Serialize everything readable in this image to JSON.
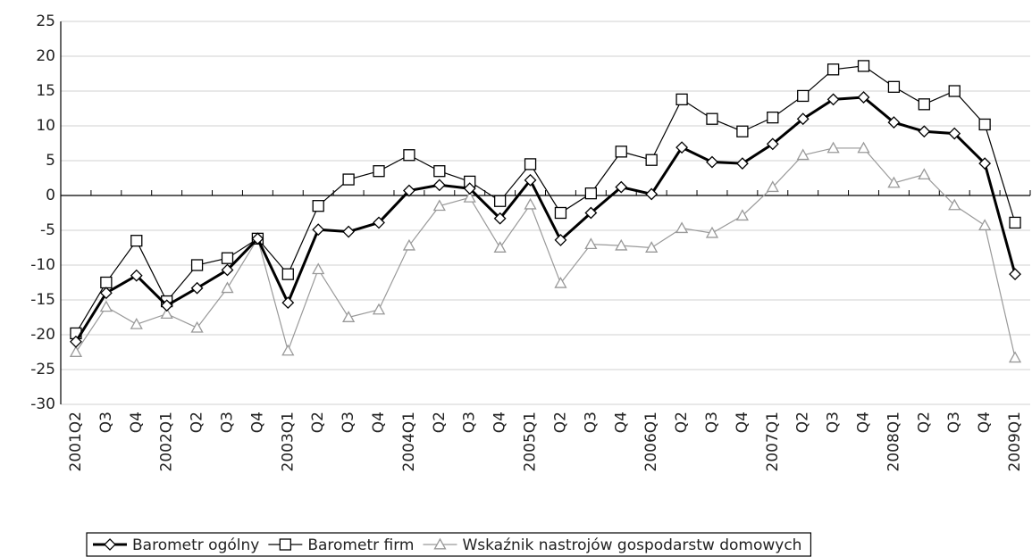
{
  "chart_data": {
    "type": "line",
    "categories": [
      "2001Q2",
      "Q3",
      "Q4",
      "2002Q1",
      "Q2",
      "Q3",
      "Q4",
      "2003Q1",
      "Q2",
      "Q3",
      "Q4",
      "2004Q1",
      "Q2",
      "Q3",
      "Q4",
      "2005Q1",
      "Q2",
      "Q3",
      "Q4",
      "2006Q1",
      "Q2",
      "Q3",
      "Q4",
      "2007Q1",
      "Q2",
      "Q3",
      "Q4",
      "2008Q1",
      "Q2",
      "Q3",
      "Q4",
      "2009Q1"
    ],
    "series": [
      {
        "name": "Barometr ogólny",
        "color": "#000000",
        "marker": "diamond",
        "line_width": 3,
        "values": [
          -21,
          -14,
          -11.5,
          -15.8,
          -13.3,
          -10.7,
          -6.2,
          -15.4,
          -4.9,
          -5.2,
          -3.9,
          0.7,
          1.5,
          1,
          -3.3,
          2.2,
          -6.4,
          -2.5,
          1.2,
          0.2,
          6.9,
          4.8,
          4.6,
          7.4,
          11,
          13.8,
          14.1,
          10.5,
          9.2,
          8.9,
          4.6,
          -11.3
        ]
      },
      {
        "name": "Barometr firm",
        "color": "#000000",
        "marker": "square",
        "line_width": 1.2,
        "values": [
          -19.8,
          -12.5,
          -6.5,
          -15.2,
          -10,
          -9,
          -6.2,
          -11.3,
          -1.5,
          2.3,
          3.5,
          5.8,
          3.5,
          2,
          -0.8,
          4.5,
          -2.5,
          0.3,
          6.3,
          5.1,
          13.8,
          11,
          9.2,
          11.2,
          14.3,
          18.1,
          18.6,
          15.6,
          13.1,
          15,
          10.2,
          -3.9
        ]
      },
      {
        "name": "Wskaźnik nastrojów gospodarstw domowych",
        "color": "#999999",
        "marker": "triangle",
        "line_width": 1.2,
        "values": [
          -22.5,
          -16,
          -18.5,
          -17,
          -19,
          -13.3,
          -6.2,
          -22.3,
          -10.6,
          -17.5,
          -16.4,
          -7.2,
          -1.5,
          -0.3,
          -7.5,
          -1.3,
          -12.6,
          -7,
          -7.2,
          -7.5,
          -4.7,
          -5.4,
          -2.9,
          1.2,
          5.8,
          6.8,
          6.8,
          1.8,
          3,
          -1.4,
          -4.3,
          -23.3
        ]
      }
    ],
    "ylim": [
      -30,
      25
    ],
    "yticks": [
      -30,
      -25,
      -20,
      -15,
      -10,
      -5,
      0,
      5,
      10,
      15,
      20,
      25
    ],
    "grid": true,
    "legend": "bottom"
  }
}
